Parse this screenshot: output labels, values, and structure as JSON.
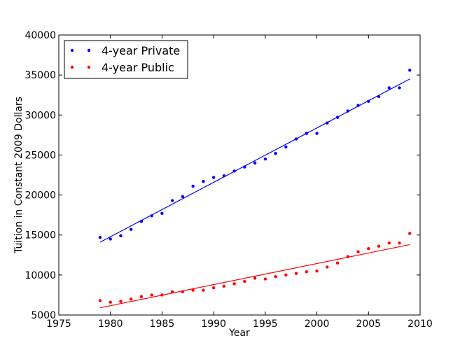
{
  "chart_data": {
    "type": "scatter",
    "title": "",
    "xlabel": "Year",
    "ylabel": "Tuition in Constant 2009 Dollars",
    "xlim": [
      1975,
      2010
    ],
    "ylim": [
      5000,
      40000
    ],
    "xticks": [
      1975,
      1980,
      1985,
      1990,
      1995,
      2000,
      2005,
      2010
    ],
    "yticks": [
      5000,
      10000,
      15000,
      20000,
      25000,
      30000,
      35000,
      40000
    ],
    "grid": false,
    "legend_position": "top-left",
    "series": [
      {
        "name": "4-year Private",
        "color": "#0000ff",
        "x": [
          1979,
          1980,
          1981,
          1982,
          1983,
          1984,
          1985,
          1986,
          1987,
          1988,
          1989,
          1990,
          1991,
          1992,
          1993,
          1994,
          1995,
          1996,
          1997,
          1998,
          1999,
          2000,
          2001,
          2002,
          2003,
          2004,
          2005,
          2006,
          2007,
          2008,
          2009
        ],
        "y": [
          14700,
          14500,
          14900,
          15700,
          16700,
          17400,
          17700,
          19300,
          19800,
          21100,
          21700,
          22200,
          22400,
          23000,
          23500,
          24000,
          24500,
          25200,
          26000,
          27000,
          27700,
          27700,
          29000,
          29700,
          30500,
          31200,
          31700,
          32300,
          33400,
          33400,
          35600
        ],
        "fit": [
          [
            1979,
            14100
          ],
          [
            2009,
            34500
          ]
        ]
      },
      {
        "name": "4-year Public",
        "color": "#ff0000",
        "x": [
          1979,
          1980,
          1981,
          1982,
          1983,
          1984,
          1985,
          1986,
          1987,
          1988,
          1989,
          1990,
          1991,
          1992,
          1993,
          1994,
          1995,
          1996,
          1997,
          1998,
          1999,
          2000,
          2001,
          2002,
          2003,
          2004,
          2005,
          2006,
          2007,
          2008,
          2009
        ],
        "y": [
          6800,
          6600,
          6700,
          7000,
          7300,
          7500,
          7500,
          7900,
          7900,
          8100,
          8100,
          8400,
          8600,
          8900,
          9200,
          9600,
          9500,
          9800,
          10000,
          10200,
          10400,
          10500,
          11000,
          11500,
          12300,
          12900,
          13300,
          13600,
          14000,
          14000,
          15200
        ],
        "fit": [
          [
            1979,
            5900
          ],
          [
            2009,
            13800
          ]
        ]
      }
    ]
  }
}
